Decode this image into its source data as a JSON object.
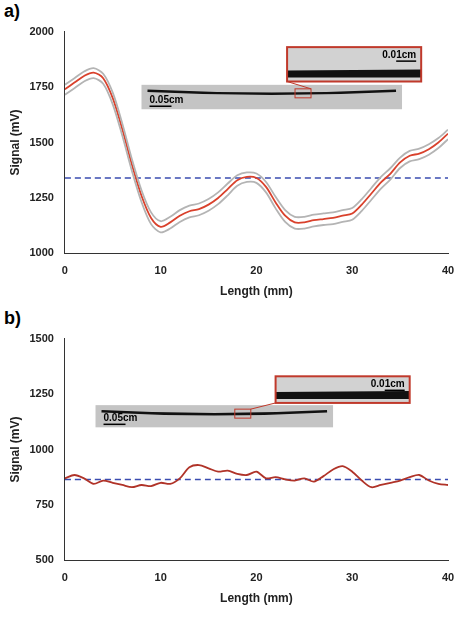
{
  "chart_data": [
    {
      "type": "line",
      "panel_label": "a)",
      "x_label": "Length (mm)",
      "y_label": "Signal (mV)",
      "x": [
        0,
        1,
        2,
        3,
        4,
        5,
        6,
        7,
        8,
        9,
        10,
        11,
        12,
        13,
        14,
        15,
        16,
        17,
        18,
        19,
        20,
        21,
        22,
        23,
        24,
        25,
        26,
        27,
        28,
        29,
        30,
        31,
        32,
        33,
        34,
        35,
        36,
        37,
        38,
        39,
        40
      ],
      "series": [
        {
          "color": "#b4b4b4",
          "line_style": "solid",
          "marker": "none",
          "values": [
            1760,
            1790,
            1820,
            1835,
            1810,
            1725,
            1585,
            1425,
            1285,
            1185,
            1145,
            1165,
            1195,
            1215,
            1225,
            1245,
            1275,
            1315,
            1352,
            1365,
            1360,
            1322,
            1255,
            1195,
            1165,
            1165,
            1175,
            1180,
            1185,
            1195,
            1205,
            1245,
            1295,
            1345,
            1385,
            1432,
            1462,
            1472,
            1492,
            1520,
            1558
          ]
        },
        {
          "color": "#b4b4b4",
          "line_style": "solid",
          "marker": "none",
          "values": [
            1715,
            1745,
            1775,
            1790,
            1765,
            1672,
            1530,
            1372,
            1232,
            1132,
            1095,
            1112,
            1142,
            1162,
            1172,
            1192,
            1222,
            1262,
            1305,
            1322,
            1318,
            1275,
            1203,
            1142,
            1112,
            1112,
            1122,
            1128,
            1132,
            1142,
            1152,
            1192,
            1242,
            1292,
            1334,
            1385,
            1415,
            1425,
            1445,
            1475,
            1515
          ]
        },
        {
          "color": "#d9412c",
          "line_style": "solid",
          "marker": "none",
          "values": [
            1740,
            1770,
            1800,
            1815,
            1790,
            1700,
            1560,
            1400,
            1260,
            1160,
            1120,
            1140,
            1170,
            1190,
            1200,
            1220,
            1250,
            1290,
            1330,
            1345,
            1340,
            1300,
            1230,
            1170,
            1140,
            1140,
            1150,
            1155,
            1160,
            1170,
            1180,
            1220,
            1270,
            1320,
            1360,
            1410,
            1440,
            1450,
            1470,
            1500,
            1540
          ]
        },
        {
          "color": "#3a4cb0",
          "line_style": "dashed",
          "marker": "none",
          "values": [
            1340,
            1340,
            1340,
            1340,
            1340,
            1340,
            1340,
            1340,
            1340,
            1340,
            1340,
            1340,
            1340,
            1340,
            1340,
            1340,
            1340,
            1340,
            1340,
            1340,
            1340,
            1340,
            1340,
            1340,
            1340,
            1340,
            1340,
            1340,
            1340,
            1340,
            1340,
            1340,
            1340,
            1340,
            1340,
            1340,
            1340,
            1340,
            1340,
            1340,
            1340
          ]
        }
      ],
      "xlim": [
        0,
        40
      ],
      "xticks": [
        0,
        10,
        20,
        30,
        40
      ],
      "ylim": [
        1000,
        2000
      ],
      "yticks": [
        1000,
        1250,
        1500,
        1750,
        2000
      ],
      "grid": false,
      "annotations": [
        "0.05cm",
        "0.01cm"
      ]
    },
    {
      "type": "line",
      "panel_label": "b)",
      "x_label": "Length (mm)",
      "y_label": "Signal (mV)",
      "x": [
        0,
        1,
        2,
        3,
        4,
        5,
        6,
        7,
        8,
        9,
        10,
        11,
        12,
        13,
        14,
        15,
        16,
        17,
        18,
        19,
        20,
        21,
        22,
        23,
        24,
        25,
        26,
        27,
        28,
        29,
        30,
        31,
        32,
        33,
        34,
        35,
        36,
        37,
        38,
        39,
        40
      ],
      "series": [
        {
          "color": "#b03328",
          "line_style": "solid",
          "marker": "none",
          "values": [
            870,
            885,
            870,
            845,
            860,
            850,
            840,
            830,
            840,
            835,
            850,
            845,
            870,
            920,
            930,
            915,
            900,
            905,
            890,
            885,
            900,
            870,
            875,
            865,
            860,
            870,
            855,
            880,
            910,
            925,
            900,
            860,
            830,
            840,
            850,
            860,
            875,
            885,
            860,
            845,
            840
          ]
        },
        {
          "color": "#3a4cb0",
          "line_style": "dashed",
          "marker": "none",
          "values": [
            865,
            865,
            865,
            865,
            865,
            865,
            865,
            865,
            865,
            865,
            865,
            865,
            865,
            865,
            865,
            865,
            865,
            865,
            865,
            865,
            865,
            865,
            865,
            865,
            865,
            865,
            865,
            865,
            865,
            865,
            865,
            865,
            865,
            865,
            865,
            865,
            865,
            865,
            865,
            865,
            865
          ]
        }
      ],
      "xlim": [
        0,
        40
      ],
      "xticks": [
        0,
        10,
        20,
        30,
        40
      ],
      "ylim": [
        500,
        1500
      ],
      "yticks": [
        500,
        750,
        1000,
        1250,
        1500
      ],
      "grid": false,
      "annotations": [
        "0.05cm",
        "0.01cm"
      ]
    }
  ]
}
